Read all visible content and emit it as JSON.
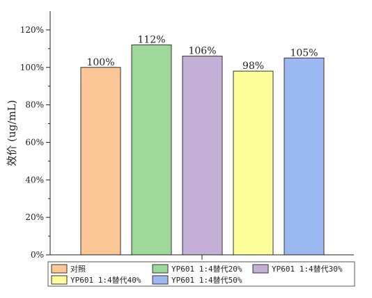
{
  "chart_data": {
    "type": "bar",
    "title": "",
    "xlabel": "",
    "ylabel": "效价 (ug/mL)",
    "ylim": [
      0,
      1.3
    ],
    "yticks": [
      {
        "value": 0,
        "label": "0%"
      },
      {
        "value": 0.2,
        "label": "20%"
      },
      {
        "value": 0.4,
        "label": "40%"
      },
      {
        "value": 0.6,
        "label": "60%"
      },
      {
        "value": 0.8,
        "label": "80%"
      },
      {
        "value": 1.0,
        "label": "100%"
      },
      {
        "value": 1.2,
        "label": "120%"
      }
    ],
    "categories": [
      "对照",
      "YP601 1:4替代20%",
      "YP601 1:4替代30%",
      "YP601 1:4替代40%",
      "YP601 1:4替代50%"
    ],
    "values": [
      1.0,
      1.12,
      1.06,
      0.98,
      1.05
    ],
    "data_labels": [
      "100%",
      "112%",
      "106%",
      "98%",
      "105%"
    ],
    "colors": [
      "#fcc797",
      "#9dd89a",
      "#c4b0d6",
      "#fefe9a",
      "#9cb8f0"
    ],
    "legend": {
      "placement": "bottom",
      "entries": [
        {
          "label": "对照",
          "color": "#fcc797"
        },
        {
          "label": "YP601 1:4替代20%",
          "color": "#9dd89a"
        },
        {
          "label": "YP601 1:4替代30%",
          "color": "#c4b0d6"
        },
        {
          "label": "YP601 1:4替代40%",
          "color": "#fefe9a"
        },
        {
          "label": "YP601 1:4替代50%",
          "color": "#9cb8f0"
        }
      ]
    },
    "grid": false
  }
}
